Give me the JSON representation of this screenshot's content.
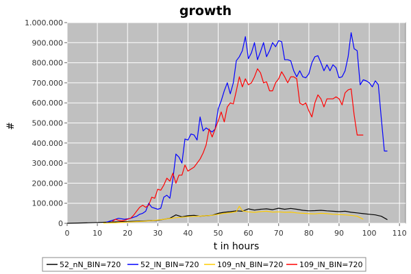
{
  "chart_data": {
    "type": "line",
    "title": "growth",
    "xlabel": "t in hours",
    "ylabel": "#",
    "xlim": [
      0,
      112
    ],
    "ylim": [
      0,
      1000000
    ],
    "xticks": [
      0,
      10,
      20,
      30,
      40,
      50,
      60,
      70,
      80,
      90,
      100,
      110
    ],
    "xtick_labels": [
      "0",
      "10",
      "20",
      "30",
      "40",
      "50",
      "60",
      "70",
      "80",
      "90",
      "100",
      "110"
    ],
    "yticks": [
      0,
      100000,
      200000,
      300000,
      400000,
      500000,
      600000,
      700000,
      800000,
      900000,
      1000000
    ],
    "ytick_labels": [
      "0",
      "100.000",
      "200.000",
      "300.000",
      "400.000",
      "500.000",
      "600.000",
      "700.000",
      "800.000",
      "900.000",
      "1.000.000"
    ],
    "grid": true,
    "legend_position": "bottom",
    "background": "#c0c0c0",
    "series": [
      {
        "name": "52_nN_BIN=720",
        "color": "#000000",
        "x": [
          0,
          6,
          10,
          14,
          18,
          22,
          26,
          30,
          34,
          36,
          38,
          40,
          42,
          44,
          46,
          48,
          50,
          52,
          54,
          56,
          58,
          60,
          62,
          64,
          66,
          68,
          70,
          72,
          74,
          76,
          78,
          80,
          82,
          84,
          86,
          88,
          90,
          92,
          94,
          96,
          98,
          100,
          102,
          104,
          106
        ],
        "y": [
          0,
          2000,
          4000,
          6000,
          8000,
          10000,
          12000,
          15000,
          25000,
          42000,
          32000,
          38000,
          40000,
          35000,
          38000,
          40000,
          50000,
          55000,
          58000,
          62000,
          60000,
          72000,
          66000,
          70000,
          72000,
          68000,
          75000,
          70000,
          74000,
          70000,
          65000,
          62000,
          63000,
          65000,
          62000,
          60000,
          58000,
          60000,
          55000,
          52000,
          48000,
          45000,
          42000,
          35000,
          18000
        ]
      },
      {
        "name": "52_lN_BIN=720",
        "color": "#0000ff",
        "x": [
          13,
          15,
          17,
          19,
          21,
          23,
          24,
          25,
          26,
          27,
          28,
          29,
          30,
          31,
          32,
          33,
          34,
          35,
          36,
          37,
          38,
          39,
          40,
          41,
          42,
          43,
          44,
          45,
          46,
          47,
          48,
          49,
          50,
          51,
          52,
          53,
          54,
          55,
          56,
          57,
          58,
          59,
          60,
          61,
          62,
          63,
          64,
          65,
          66,
          67,
          68,
          69,
          70,
          71,
          72,
          73,
          74,
          75,
          76,
          77,
          78,
          79,
          80,
          81,
          82,
          83,
          84,
          85,
          86,
          87,
          88,
          89,
          90,
          91,
          92,
          93,
          94,
          95,
          96,
          97,
          98,
          99,
          100,
          101,
          102,
          103,
          104,
          105,
          106
        ],
        "y": [
          5000,
          15000,
          25000,
          20000,
          25000,
          35000,
          45000,
          50000,
          60000,
          100000,
          80000,
          75000,
          70000,
          75000,
          130000,
          140000,
          125000,
          220000,
          345000,
          330000,
          300000,
          420000,
          415000,
          445000,
          440000,
          415000,
          530000,
          460000,
          475000,
          465000,
          455000,
          470000,
          570000,
          610000,
          660000,
          700000,
          645000,
          700000,
          810000,
          830000,
          860000,
          930000,
          820000,
          850000,
          900000,
          815000,
          855000,
          900000,
          830000,
          860000,
          900000,
          880000,
          910000,
          905000,
          815000,
          815000,
          810000,
          760000,
          730000,
          760000,
          730000,
          725000,
          745000,
          800000,
          830000,
          835000,
          800000,
          760000,
          790000,
          760000,
          790000,
          775000,
          725000,
          730000,
          760000,
          830000,
          950000,
          870000,
          860000,
          690000,
          715000,
          710000,
          700000,
          680000,
          710000,
          690000,
          520000,
          360000,
          360000
        ]
      },
      {
        "name": "109_nN_BIN=720",
        "color": "#ffcc00",
        "x": [
          12,
          16,
          20,
          24,
          28,
          32,
          36,
          40,
          44,
          48,
          50,
          52,
          54,
          56,
          57,
          58,
          60,
          62,
          64,
          66,
          68,
          70,
          72,
          74,
          76,
          78,
          80,
          82,
          84,
          86,
          88,
          90,
          92,
          94,
          96,
          98
        ],
        "y": [
          1000,
          3000,
          6000,
          9000,
          13000,
          20000,
          28000,
          33000,
          36000,
          40000,
          45000,
          50000,
          53000,
          58000,
          85000,
          62000,
          57000,
          55000,
          58000,
          60000,
          56000,
          57000,
          55000,
          56000,
          52000,
          50000,
          48000,
          47000,
          50000,
          48000,
          45000,
          44000,
          42000,
          40000,
          35000,
          20000
        ]
      },
      {
        "name": "109_lN_BIN=720",
        "color": "#ff0000",
        "x": [
          15,
          16,
          17,
          18,
          19,
          20,
          21,
          22,
          23,
          24,
          25,
          26,
          27,
          28,
          29,
          30,
          31,
          32,
          33,
          34,
          35,
          36,
          37,
          38,
          39,
          40,
          41,
          42,
          43,
          44,
          45,
          46,
          47,
          48,
          49,
          50,
          51,
          52,
          53,
          54,
          55,
          56,
          57,
          58,
          59,
          60,
          61,
          62,
          63,
          64,
          65,
          66,
          67,
          68,
          69,
          70,
          71,
          72,
          73,
          74,
          75,
          76,
          77,
          78,
          79,
          80,
          81,
          82,
          83,
          84,
          85,
          86,
          87,
          88,
          89,
          90,
          91,
          92,
          93,
          94,
          95,
          96,
          97,
          98
        ],
        "y": [
          10000,
          20000,
          15000,
          12000,
          15000,
          20000,
          25000,
          40000,
          60000,
          80000,
          90000,
          80000,
          90000,
          130000,
          125000,
          170000,
          165000,
          190000,
          225000,
          210000,
          250000,
          200000,
          240000,
          240000,
          290000,
          260000,
          270000,
          280000,
          300000,
          320000,
          350000,
          390000,
          470000,
          430000,
          470000,
          510000,
          555000,
          505000,
          580000,
          600000,
          595000,
          660000,
          730000,
          680000,
          720000,
          690000,
          700000,
          730000,
          770000,
          750000,
          700000,
          705000,
          660000,
          660000,
          700000,
          720000,
          755000,
          730000,
          700000,
          730000,
          730000,
          720000,
          600000,
          590000,
          600000,
          560000,
          530000,
          600000,
          640000,
          620000,
          580000,
          620000,
          620000,
          620000,
          630000,
          620000,
          590000,
          650000,
          665000,
          670000,
          540000,
          440000,
          440000,
          440000
        ]
      }
    ]
  }
}
